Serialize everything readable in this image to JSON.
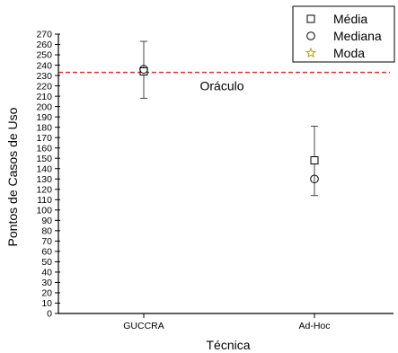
{
  "chart_data": {
    "type": "scatter",
    "xlabel": "Técnica",
    "ylabel": "Pontos de Casos de Uso",
    "categories": [
      "GUCCRA",
      "Ad-Hoc"
    ],
    "ylim": [
      0,
      270
    ],
    "ytick_step": 10,
    "grid": false,
    "legend_position": "top-right",
    "series": [
      {
        "name": "Média",
        "marker": "square",
        "color": "#000000",
        "values": [
          234,
          148
        ]
      },
      {
        "name": "Mediana",
        "marker": "circle",
        "color": "#000000",
        "values": [
          236,
          130
        ]
      },
      {
        "name": "Moda",
        "marker": "star",
        "color": "#b5a000",
        "values": [
          null,
          null
        ]
      }
    ],
    "error_bars": [
      {
        "category": "GUCCRA",
        "low": 208,
        "high": 263
      },
      {
        "category": "Ad-Hoc",
        "low": 114,
        "high": 181
      }
    ],
    "reference_line": {
      "value": 233,
      "label": "Oráculo",
      "color": "#e03030",
      "style": "dashed"
    }
  }
}
